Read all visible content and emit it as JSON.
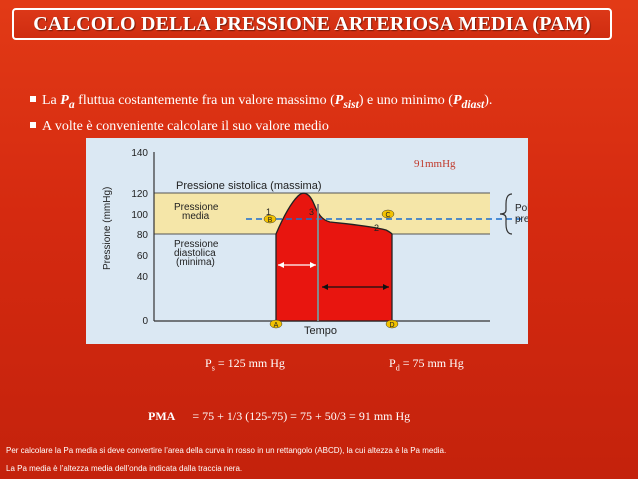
{
  "title": "CALCOLO DELLA PRESSIONE ARTERIOSA MEDIA (PAM)",
  "bullets": {
    "b1": {
      "pre": "La ",
      "p": "P",
      "sub_a": "a",
      "mid": " fluttua costantemente fra un valore massimo  (",
      "p2": "P",
      "sub_sist": "sist",
      "mid2": ") e  uno minimo (",
      "p3": "P",
      "sub_diast": "diast",
      "end": ")."
    },
    "b2": "A volte è conveniente  calcolare il suo valore medio"
  },
  "figure": {
    "ylabel": "Pressione (mmHg)",
    "ticks": [
      "140",
      "120",
      "100",
      "80",
      "60",
      "40",
      "0"
    ],
    "sistolica": "Pressione sistolica (massima)",
    "media1": "Pressione",
    "media2": "media",
    "diastolica1": "Pressione",
    "diastolica2": "diastolica",
    "diastolica3": "(minima)",
    "polso1": "Polso",
    "polso2": "pressorio",
    "tempo": "Tempo",
    "mmhg_note": "91mmHg",
    "point_a": "A",
    "point_b": "B",
    "point_c": "C",
    "point_d": "D",
    "area_1": "1",
    "area_2": "2",
    "area_3": "3"
  },
  "ps": {
    "p": "P",
    "sub": "s",
    "text": " = 125 mm Hg"
  },
  "pd": {
    "p": "P",
    "sub": "d",
    "text": " = 75 mm Hg"
  },
  "pma": {
    "label": "PMA",
    "formula": "= 75 + 1/3 (125-75) = 75 + 50/3 = 91 mm Hg"
  },
  "footer": {
    "line1": "Per calcolare la Pa media si deve convertire l’area della curva in rosso in un rettangolo (ABCD), la cui altezza è la Pa media.",
    "line2": "La Pa media è l’altezza media dell’onda indicata dalla traccia nera."
  },
  "colors": {
    "background": "#d52a10",
    "figure_bg": "#dbe8f3",
    "band": "#f5e6a8",
    "curve_fill": "#e8150f",
    "mean_line": "#1b6fd0"
  }
}
